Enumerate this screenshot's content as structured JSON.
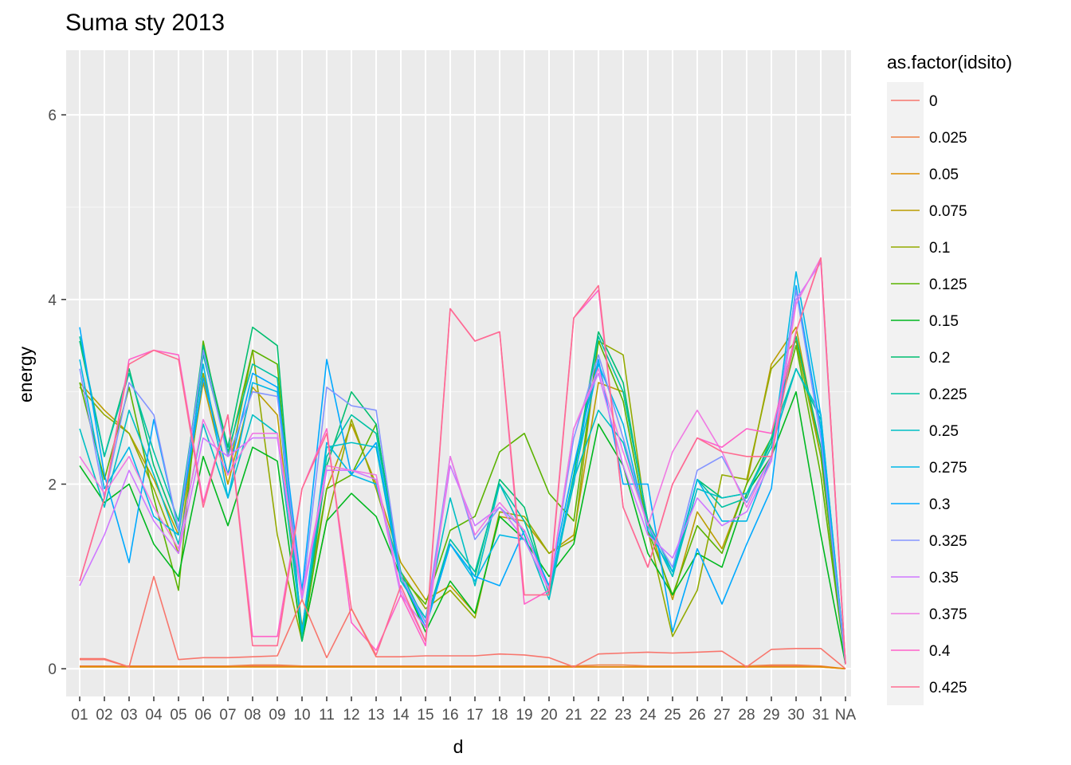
{
  "chart_data": {
    "type": "line",
    "title": "Suma sty 2013",
    "xlabel": "d",
    "ylabel": "energy",
    "categories": [
      "01",
      "02",
      "03",
      "04",
      "05",
      "06",
      "07",
      "08",
      "09",
      "10",
      "11",
      "12",
      "13",
      "14",
      "15",
      "16",
      "17",
      "18",
      "19",
      "20",
      "21",
      "22",
      "23",
      "24",
      "25",
      "26",
      "27",
      "28",
      "29",
      "30",
      "31",
      "NA"
    ],
    "ylim": [
      -0.3,
      6.7
    ],
    "yticks": [
      0,
      2,
      4,
      6
    ],
    "grid": true,
    "legend": {
      "title": "as.factor(idsito)",
      "position": "right"
    },
    "series": [
      {
        "name": "0",
        "color": "#F8766D",
        "values": [
          0.11,
          0.11,
          0.02,
          0.02,
          0.02,
          0.02,
          0.02,
          0.03,
          0.03,
          0.02,
          0.02,
          0.02,
          0.02,
          0.02,
          0.02,
          0.02,
          0.02,
          0.02,
          0.02,
          0.02,
          0.02,
          0.02,
          0.02,
          0.02,
          0.02,
          0.02,
          0.02,
          0.02,
          0.03,
          0.03,
          0.02,
          0.0
        ]
      },
      {
        "name": "0.025",
        "color": "#EE8043",
        "values": [
          0.03,
          0.03,
          0.03,
          0.03,
          0.03,
          0.03,
          0.03,
          0.04,
          0.04,
          0.03,
          0.03,
          0.03,
          0.03,
          0.03,
          0.03,
          0.03,
          0.03,
          0.03,
          0.03,
          0.03,
          0.03,
          0.04,
          0.04,
          0.03,
          0.03,
          0.03,
          0.03,
          0.03,
          0.04,
          0.04,
          0.03,
          0.0
        ]
      },
      {
        "name": "0.05",
        "color": "#DE8C00",
        "values": [
          0.02,
          0.02,
          0.02,
          0.02,
          0.02,
          0.02,
          0.02,
          0.02,
          0.02,
          0.02,
          0.02,
          0.02,
          0.02,
          0.02,
          0.02,
          0.02,
          0.02,
          0.02,
          0.02,
          0.02,
          0.02,
          0.02,
          0.02,
          0.02,
          0.02,
          0.02,
          0.02,
          0.02,
          0.02,
          0.02,
          0.02,
          0.0
        ]
      },
      {
        "name": "0.075",
        "color": "#BB9D00",
        "values": [
          3.1,
          2.8,
          2.55,
          2.05,
          1.45,
          3.1,
          2.0,
          3.05,
          2.75,
          0.45,
          1.95,
          2.65,
          2.0,
          1.15,
          0.75,
          0.9,
          0.6,
          1.65,
          1.6,
          1.25,
          1.45,
          3.1,
          3.0,
          1.6,
          0.75,
          1.7,
          1.3,
          2.0,
          3.3,
          3.7,
          2.3,
          0.05
        ]
      },
      {
        "name": "0.1",
        "color": "#93AA00",
        "values": [
          3.05,
          2.75,
          2.55,
          1.95,
          1.25,
          3.2,
          2.1,
          3.45,
          1.45,
          0.3,
          1.6,
          2.7,
          1.95,
          1.05,
          0.65,
          0.85,
          0.55,
          1.7,
          1.65,
          1.25,
          1.4,
          3.55,
          3.4,
          1.5,
          0.35,
          0.85,
          2.1,
          2.05,
          3.25,
          3.55,
          2.3,
          0.05
        ]
      },
      {
        "name": "0.125",
        "color": "#5BB300",
        "values": [
          3.1,
          2.05,
          3.05,
          1.85,
          0.85,
          3.55,
          2.3,
          3.45,
          3.3,
          0.3,
          1.95,
          2.1,
          2.65,
          1.0,
          0.7,
          1.5,
          1.65,
          2.35,
          2.55,
          1.9,
          1.6,
          3.55,
          2.9,
          1.5,
          0.8,
          1.55,
          1.25,
          2.0,
          2.5,
          3.5,
          2.1,
          0.05
        ]
      },
      {
        "name": "0.15",
        "color": "#00B81F",
        "values": [
          2.2,
          1.8,
          2.0,
          1.35,
          1.0,
          2.3,
          1.55,
          2.4,
          2.25,
          0.3,
          1.6,
          1.9,
          1.65,
          1.0,
          0.4,
          0.95,
          0.6,
          1.65,
          1.4,
          1.0,
          1.35,
          2.65,
          2.2,
          1.25,
          0.8,
          1.25,
          1.1,
          1.9,
          2.3,
          3.0,
          1.45,
          0.05
        ]
      },
      {
        "name": "0.2",
        "color": "#00BE70",
        "values": [
          3.55,
          2.3,
          3.25,
          2.2,
          1.5,
          3.5,
          2.4,
          3.7,
          3.5,
          0.3,
          2.2,
          3.0,
          2.65,
          1.0,
          0.45,
          1.35,
          1.0,
          2.05,
          1.75,
          0.8,
          2.1,
          3.65,
          3.1,
          1.55,
          1.0,
          2.05,
          1.85,
          1.9,
          2.45,
          3.6,
          2.4,
          0.05
        ]
      },
      {
        "name": "0.225",
        "color": "#00C1A3",
        "values": [
          3.6,
          2.3,
          3.2,
          2.35,
          1.6,
          3.4,
          2.35,
          3.3,
          3.15,
          0.35,
          2.3,
          2.75,
          2.55,
          1.05,
          0.5,
          1.4,
          1.05,
          2.0,
          1.6,
          0.85,
          2.0,
          3.6,
          3.0,
          1.6,
          1.05,
          2.05,
          1.75,
          1.85,
          2.5,
          3.25,
          2.7,
          0.05
        ]
      },
      {
        "name": "0.25",
        "color": "#00BFC4",
        "values": [
          2.6,
          1.75,
          2.8,
          2.1,
          1.35,
          2.65,
          1.85,
          2.75,
          2.55,
          0.4,
          2.4,
          2.45,
          2.4,
          0.95,
          0.55,
          1.85,
          0.9,
          2.0,
          1.45,
          0.75,
          2.05,
          2.8,
          2.45,
          1.55,
          1.0,
          1.95,
          1.85,
          1.9,
          2.4,
          3.25,
          2.75,
          0.05
        ]
      },
      {
        "name": "0.275",
        "color": "#00B8E7",
        "values": [
          3.35,
          1.95,
          2.4,
          1.65,
          1.45,
          3.3,
          1.85,
          3.1,
          3.0,
          0.4,
          2.45,
          2.1,
          2.0,
          1.0,
          0.45,
          1.35,
          0.95,
          1.45,
          1.4,
          0.85,
          2.05,
          3.3,
          2.65,
          1.5,
          1.05,
          2.05,
          1.6,
          1.6,
          2.3,
          4.3,
          2.75,
          0.05
        ]
      },
      {
        "name": "0.3",
        "color": "#00A9FF",
        "values": [
          3.7,
          2.1,
          1.15,
          2.7,
          1.5,
          3.15,
          2.1,
          3.2,
          3.05,
          0.85,
          3.35,
          2.1,
          2.45,
          1.0,
          0.45,
          1.35,
          1.0,
          0.9,
          1.5,
          0.9,
          2.2,
          3.35,
          2.0,
          2.0,
          0.4,
          1.3,
          0.7,
          1.35,
          1.95,
          4.15,
          2.6,
          0.05
        ]
      },
      {
        "name": "0.325",
        "color": "#8494FF",
        "values": [
          3.25,
          1.85,
          3.1,
          2.75,
          1.5,
          3.45,
          2.3,
          3.0,
          2.95,
          0.75,
          3.05,
          2.85,
          2.8,
          1.0,
          0.5,
          2.3,
          1.4,
          1.75,
          1.5,
          0.85,
          2.5,
          3.4,
          2.5,
          1.55,
          1.1,
          2.15,
          2.3,
          1.8,
          2.3,
          4.1,
          2.5,
          0.05
        ]
      },
      {
        "name": "0.35",
        "color": "#CF78FF",
        "values": [
          0.9,
          1.45,
          2.15,
          1.6,
          1.25,
          2.5,
          2.3,
          2.5,
          2.5,
          0.75,
          2.15,
          2.15,
          2.05,
          0.8,
          0.45,
          2.2,
          1.55,
          1.75,
          1.4,
          0.85,
          2.6,
          3.2,
          2.2,
          1.45,
          1.2,
          1.85,
          1.55,
          1.7,
          2.25,
          4.0,
          4.4,
          0.05
        ]
      },
      {
        "name": "0.375",
        "color": "#F07AE3",
        "values": [
          2.3,
          1.9,
          2.3,
          1.75,
          1.3,
          2.7,
          2.1,
          2.55,
          2.55,
          0.8,
          2.2,
          2.15,
          2.1,
          0.85,
          0.3,
          2.3,
          1.45,
          1.8,
          1.5,
          0.85,
          2.6,
          3.25,
          2.35,
          1.55,
          2.35,
          2.8,
          2.35,
          1.75,
          2.3,
          3.95,
          4.45,
          0.05
        ]
      },
      {
        "name": "0.4",
        "color": "#FF61C9",
        "values": [
          0.95,
          1.85,
          3.35,
          3.45,
          3.4,
          1.8,
          2.75,
          0.35,
          0.35,
          1.95,
          2.6,
          0.5,
          0.2,
          0.8,
          0.25,
          3.9,
          3.55,
          3.65,
          0.7,
          0.85,
          3.8,
          4.1,
          1.75,
          1.1,
          2.0,
          2.5,
          2.4,
          2.6,
          2.55,
          3.65,
          4.45,
          0.05
        ]
      },
      {
        "name": "0.425",
        "color": "#FF6C91",
        "values": [
          0.95,
          1.85,
          3.3,
          3.45,
          3.35,
          1.75,
          2.75,
          0.25,
          0.25,
          1.95,
          2.55,
          0.65,
          0.15,
          0.9,
          0.3,
          3.9,
          3.55,
          3.65,
          0.8,
          0.8,
          3.8,
          4.15,
          1.75,
          1.1,
          2.0,
          2.5,
          2.35,
          2.3,
          2.3,
          3.65,
          4.45,
          0.05
        ]
      },
      {
        "name": "",
        "color": "#F8766D",
        "values": [
          0.1,
          0.1,
          0.02,
          1.0,
          0.1,
          0.12,
          0.12,
          0.13,
          0.14,
          0.75,
          0.12,
          0.65,
          0.13,
          0.13,
          0.14,
          0.14,
          0.14,
          0.16,
          0.15,
          0.12,
          0.02,
          0.16,
          0.17,
          0.18,
          0.17,
          0.18,
          0.19,
          0.02,
          0.21,
          0.22,
          0.22,
          0.0
        ]
      }
    ]
  }
}
